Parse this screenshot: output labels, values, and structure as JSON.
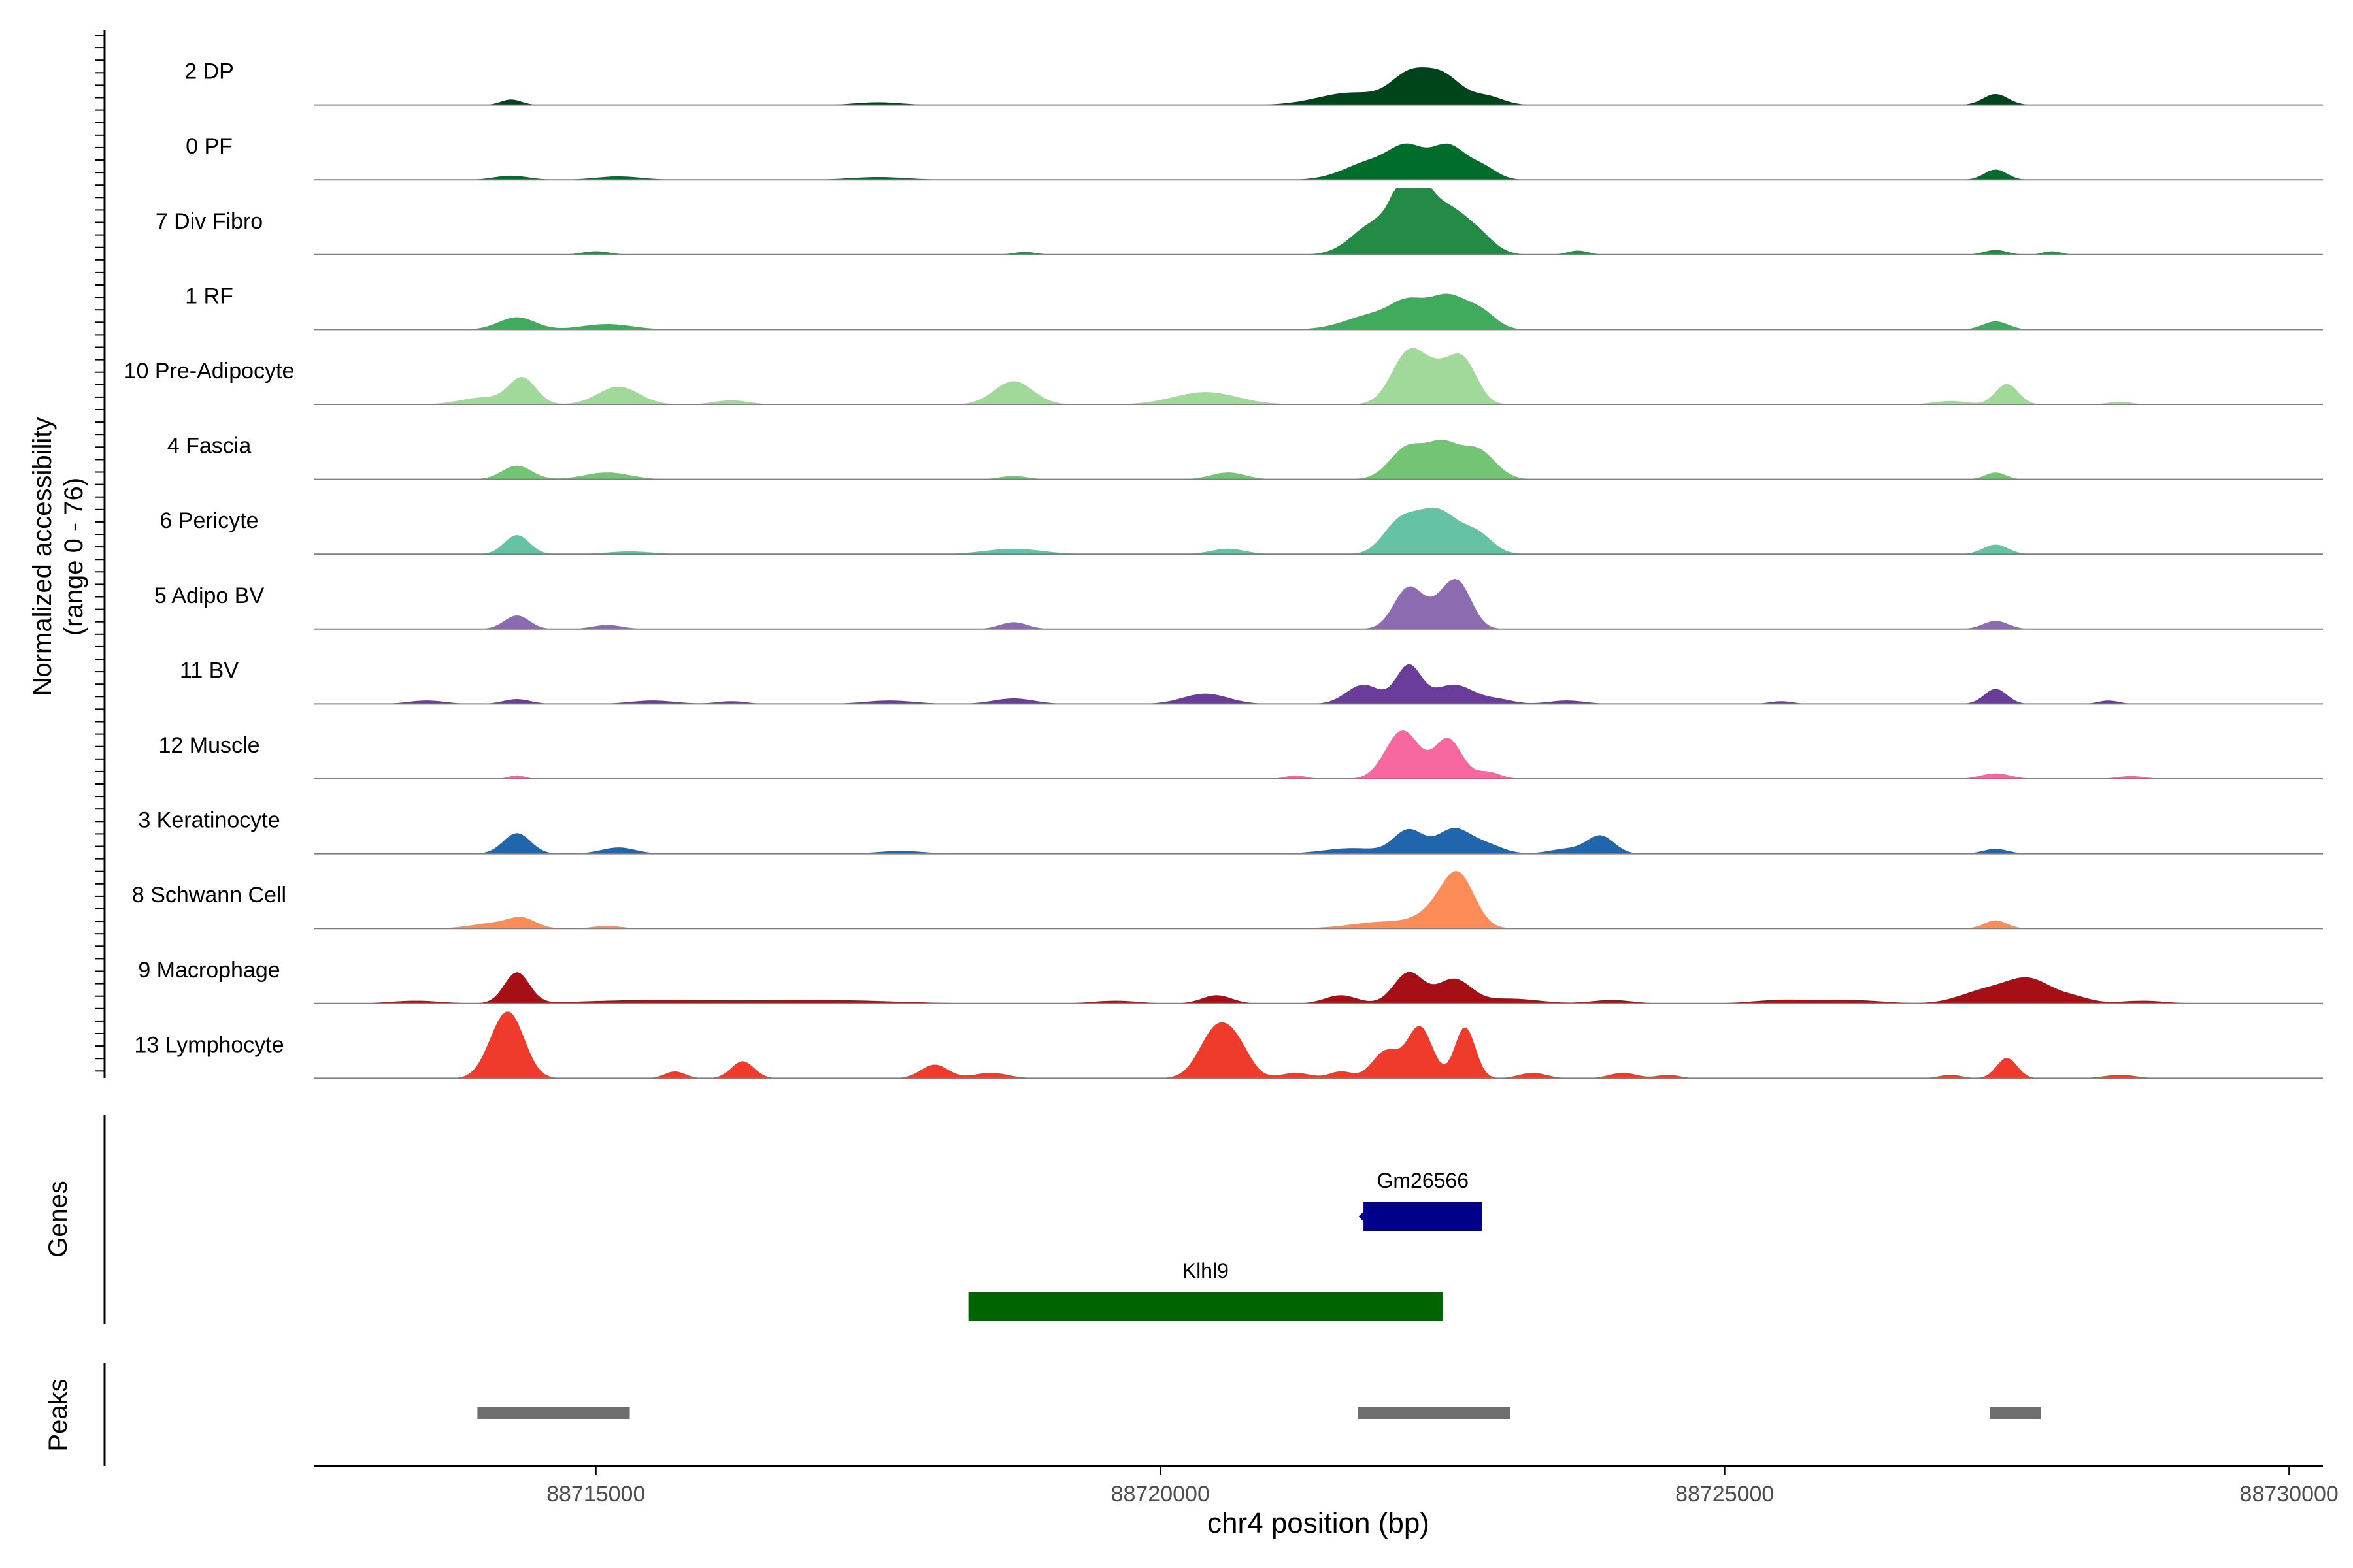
{
  "chart_data": {
    "type": "area",
    "chromosome": "chr4",
    "xlabel": "chr4 position (bp)",
    "ylabel": "Normalized accessibility",
    "ylabel_range": "(range 0 - 76)",
    "ylim": [
      0,
      76
    ],
    "xlim": [
      88712500,
      88730300
    ],
    "x_ticks": [
      88715000,
      88720000,
      88725000,
      88730000
    ],
    "x_tick_labels": [
      "88715000",
      "88720000",
      "88725000",
      "88730000"
    ],
    "tracks": [
      {
        "name": "2 DP",
        "color": "#00441b",
        "peaks": [
          [
            88714250,
            0.08,
            90
          ],
          [
            88717500,
            0.04,
            200
          ],
          [
            88721700,
            0.18,
            300
          ],
          [
            88722200,
            0.38,
            160
          ],
          [
            88722500,
            0.42,
            170
          ],
          [
            88722900,
            0.12,
            140
          ],
          [
            88727400,
            0.16,
            110
          ]
        ]
      },
      {
        "name": "0 PF",
        "color": "#006d2c",
        "peaks": [
          [
            88714250,
            0.06,
            150
          ],
          [
            88715200,
            0.05,
            200
          ],
          [
            88717500,
            0.04,
            250
          ],
          [
            88721900,
            0.28,
            250
          ],
          [
            88722200,
            0.36,
            150
          ],
          [
            88722550,
            0.48,
            150
          ],
          [
            88722850,
            0.18,
            130
          ],
          [
            88727400,
            0.15,
            100
          ]
        ]
      },
      {
        "name": "7 Div Fibro",
        "color": "#238b45",
        "peaks": [
          [
            88715000,
            0.05,
            120
          ],
          [
            88718800,
            0.04,
            100
          ],
          [
            88721900,
            0.45,
            200
          ],
          [
            88722200,
            0.78,
            130
          ],
          [
            88722300,
            0.5,
            150
          ],
          [
            88722550,
            0.52,
            150
          ],
          [
            88722800,
            0.3,
            150
          ],
          [
            88723700,
            0.06,
            90
          ],
          [
            88727400,
            0.07,
            100
          ],
          [
            88727900,
            0.05,
            80
          ]
        ]
      },
      {
        "name": "1 RF",
        "color": "#41ab5d",
        "peaks": [
          [
            88714300,
            0.18,
            160
          ],
          [
            88715100,
            0.08,
            220
          ],
          [
            88721900,
            0.22,
            250
          ],
          [
            88722200,
            0.3,
            150
          ],
          [
            88722550,
            0.48,
            170
          ],
          [
            88722850,
            0.22,
            130
          ],
          [
            88727400,
            0.12,
            110
          ]
        ]
      },
      {
        "name": "10 Pre-Adipocyte",
        "color": "#a1d99b",
        "peaks": [
          [
            88714000,
            0.1,
            200
          ],
          [
            88714350,
            0.38,
            120
          ],
          [
            88715200,
            0.26,
            180
          ],
          [
            88716200,
            0.06,
            150
          ],
          [
            88718700,
            0.34,
            170
          ],
          [
            88720400,
            0.18,
            280
          ],
          [
            88722200,
            0.75,
            150
          ],
          [
            88722500,
            0.45,
            150
          ],
          [
            88722700,
            0.5,
            120
          ],
          [
            88727000,
            0.05,
            150
          ],
          [
            88727500,
            0.3,
            100
          ],
          [
            88728500,
            0.04,
            100
          ]
        ]
      },
      {
        "name": "4 Fascia",
        "color": "#74c476",
        "peaks": [
          [
            88714300,
            0.2,
            130
          ],
          [
            88715100,
            0.1,
            200
          ],
          [
            88718700,
            0.05,
            120
          ],
          [
            88720600,
            0.1,
            150
          ],
          [
            88722200,
            0.48,
            160
          ],
          [
            88722500,
            0.42,
            130
          ],
          [
            88722800,
            0.44,
            160
          ],
          [
            88727400,
            0.1,
            90
          ]
        ]
      },
      {
        "name": "6 Pericyte",
        "color": "#66c2a4",
        "peaks": [
          [
            88714300,
            0.28,
            110
          ],
          [
            88715300,
            0.04,
            200
          ],
          [
            88718700,
            0.08,
            250
          ],
          [
            88720600,
            0.08,
            150
          ],
          [
            88722100,
            0.4,
            140
          ],
          [
            88722300,
            0.3,
            140
          ],
          [
            88722500,
            0.5,
            150
          ],
          [
            88722800,
            0.3,
            140
          ],
          [
            88727400,
            0.14,
            110
          ]
        ]
      },
      {
        "name": "5 Adipo BV",
        "color": "#8c6bb1",
        "peaks": [
          [
            88714300,
            0.2,
            110
          ],
          [
            88715100,
            0.06,
            130
          ],
          [
            88718700,
            0.1,
            120
          ],
          [
            88722200,
            0.6,
            130
          ],
          [
            88722500,
            0.3,
            130
          ],
          [
            88722650,
            0.55,
            120
          ],
          [
            88727400,
            0.12,
            110
          ]
        ]
      },
      {
        "name": "11 BV",
        "color": "#6a3d9a",
        "peaks": [
          [
            88713500,
            0.05,
            160
          ],
          [
            88714300,
            0.07,
            120
          ],
          [
            88715500,
            0.05,
            200
          ],
          [
            88716200,
            0.04,
            130
          ],
          [
            88717600,
            0.05,
            220
          ],
          [
            88718700,
            0.08,
            180
          ],
          [
            88720400,
            0.15,
            200
          ],
          [
            88721800,
            0.28,
            150
          ],
          [
            88722200,
            0.55,
            110
          ],
          [
            88722600,
            0.28,
            180
          ],
          [
            88723000,
            0.06,
            130
          ],
          [
            88723600,
            0.05,
            160
          ],
          [
            88725500,
            0.04,
            100
          ],
          [
            88727400,
            0.22,
            100
          ],
          [
            88728400,
            0.05,
            90
          ]
        ]
      },
      {
        "name": "12 Muscle",
        "color": "#f768a1",
        "peaks": [
          [
            88714300,
            0.05,
            70
          ],
          [
            88721200,
            0.05,
            90
          ],
          [
            88722100,
            0.4,
            140
          ],
          [
            88722200,
            0.35,
            140
          ],
          [
            88722550,
            0.58,
            120
          ],
          [
            88722900,
            0.1,
            110
          ],
          [
            88727400,
            0.08,
            130
          ],
          [
            88728600,
            0.04,
            120
          ]
        ]
      },
      {
        "name": "3 Keratinocyte",
        "color": "#2166ac",
        "peaks": [
          [
            88714300,
            0.3,
            120
          ],
          [
            88715200,
            0.09,
            150
          ],
          [
            88717700,
            0.04,
            200
          ],
          [
            88721700,
            0.08,
            250
          ],
          [
            88722200,
            0.34,
            130
          ],
          [
            88722600,
            0.36,
            150
          ],
          [
            88722900,
            0.12,
            140
          ],
          [
            88723600,
            0.07,
            150
          ],
          [
            88723900,
            0.26,
            120
          ],
          [
            88727400,
            0.07,
            110
          ]
        ]
      },
      {
        "name": "8 Schwann Cell",
        "color": "#fc8d59",
        "peaks": [
          [
            88714100,
            0.08,
            200
          ],
          [
            88714350,
            0.13,
            120
          ],
          [
            88715100,
            0.04,
            120
          ],
          [
            88722000,
            0.1,
            300
          ],
          [
            88722500,
            0.28,
            180
          ],
          [
            88722650,
            0.62,
            140
          ],
          [
            88727400,
            0.12,
            100
          ]
        ]
      },
      {
        "name": "9 Macrophage",
        "color": "#a50f15",
        "peaks": [
          [
            88713400,
            0.04,
            220
          ],
          [
            88714300,
            0.45,
            110
          ],
          [
            88715500,
            0.05,
            600
          ],
          [
            88717000,
            0.05,
            600
          ],
          [
            88719600,
            0.04,
            200
          ],
          [
            88720500,
            0.12,
            130
          ],
          [
            88721600,
            0.12,
            140
          ],
          [
            88722200,
            0.45,
            130
          ],
          [
            88722600,
            0.35,
            150
          ],
          [
            88723100,
            0.07,
            250
          ],
          [
            88724000,
            0.05,
            180
          ],
          [
            88725500,
            0.05,
            250
          ],
          [
            88726100,
            0.05,
            280
          ],
          [
            88727300,
            0.18,
            220
          ],
          [
            88727700,
            0.34,
            200
          ],
          [
            88728100,
            0.08,
            150
          ],
          [
            88728700,
            0.04,
            200
          ]
        ]
      },
      {
        "name": "13 Lymphocyte",
        "color": "#ef3b2c",
        "peaks": [
          [
            88714250,
            0.82,
            130
          ],
          [
            88714100,
            0.3,
            120
          ],
          [
            88715700,
            0.1,
            90
          ],
          [
            88716300,
            0.25,
            100
          ],
          [
            88718000,
            0.2,
            120
          ],
          [
            88718500,
            0.08,
            150
          ],
          [
            88720500,
            0.72,
            150
          ],
          [
            88720700,
            0.3,
            120
          ],
          [
            88721200,
            0.08,
            130
          ],
          [
            88721600,
            0.1,
            100
          ],
          [
            88722000,
            0.4,
            120
          ],
          [
            88722300,
            0.75,
            110
          ],
          [
            88722700,
            0.75,
            90
          ],
          [
            88723300,
            0.08,
            120
          ],
          [
            88724100,
            0.08,
            120
          ],
          [
            88724500,
            0.05,
            100
          ],
          [
            88727000,
            0.05,
            100
          ],
          [
            88727500,
            0.3,
            90
          ],
          [
            88728500,
            0.05,
            140
          ]
        ]
      }
    ],
    "genes": [
      {
        "name": "Gm26566",
        "start": 88721800,
        "end": 88722850,
        "color": "#00008b",
        "strand": "-"
      },
      {
        "name": "Klhl9",
        "start": 88718300,
        "end": 88722500,
        "color": "#006400",
        "strand": ""
      }
    ],
    "peaks": [
      {
        "start": 88713950,
        "end": 88715300
      },
      {
        "start": 88721750,
        "end": 88723100
      },
      {
        "start": 88727350,
        "end": 88727800
      }
    ],
    "panel_labels": {
      "genes": "Genes",
      "peaks": "Peaks"
    },
    "colors": {
      "baseline": "#7f7f7f",
      "peak_bar": "#6e6e6e",
      "axis": "#000000",
      "label": "#000000"
    }
  }
}
